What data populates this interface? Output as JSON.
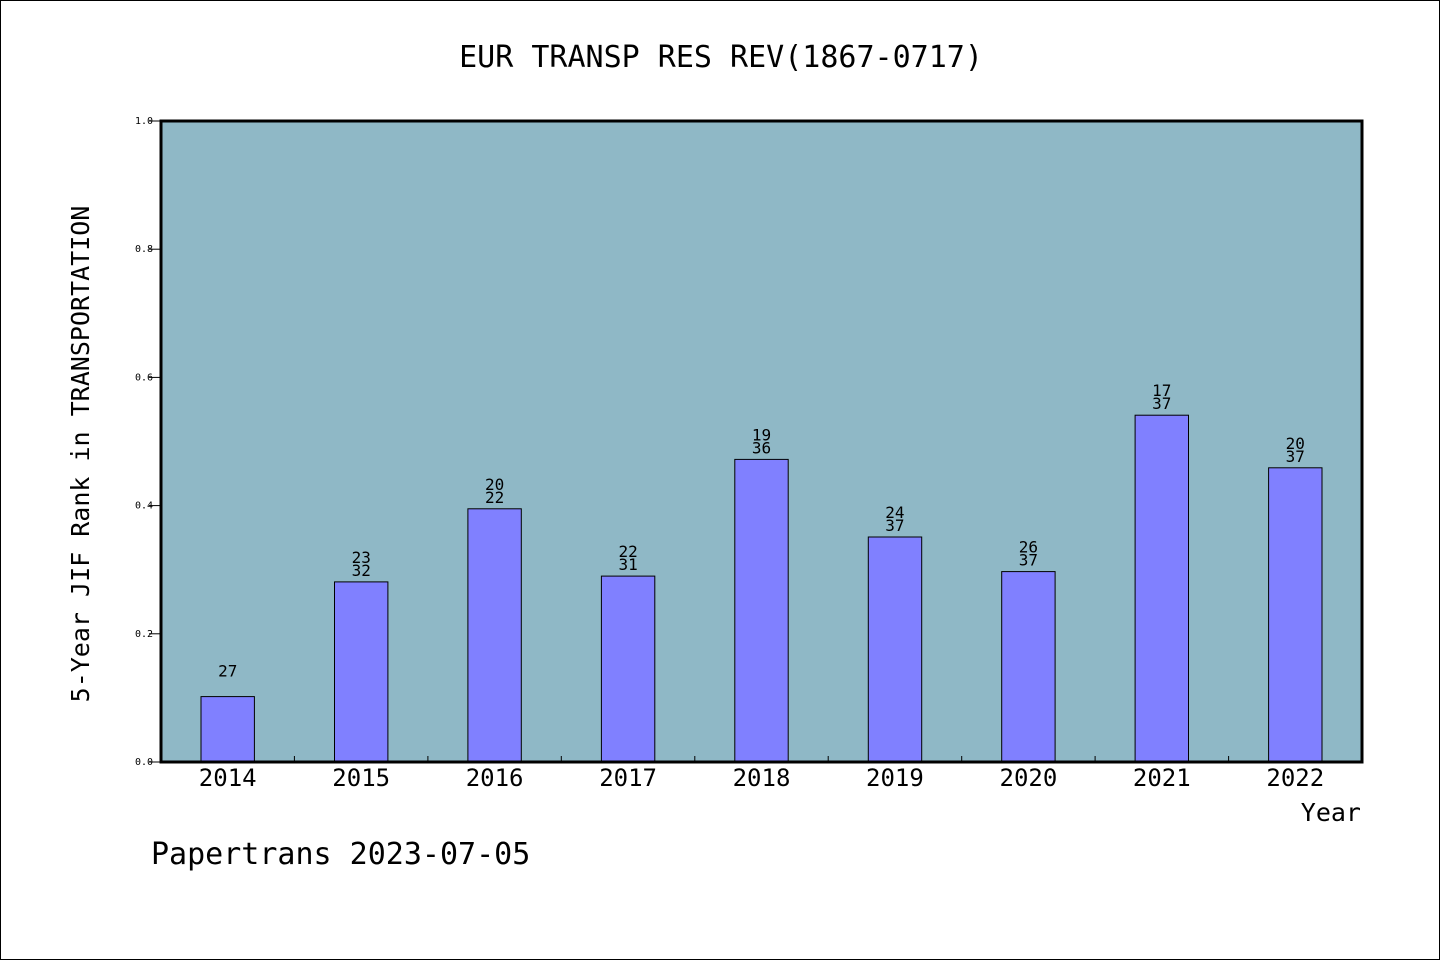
{
  "chart_data": {
    "type": "bar",
    "title": "EUR TRANSP RES REV(1867-0717)",
    "xlabel": "Year",
    "ylabel": "5-Year JIF Rank in TRANSPORTATION",
    "ylim": [
      0,
      1.0
    ],
    "yticks": [
      "0.0",
      "0.2",
      "0.4",
      "0.6",
      "0.8",
      "1.0"
    ],
    "categories": [
      "2014",
      "2015",
      "2016",
      "2017",
      "2018",
      "2019",
      "2020",
      "2021",
      "2022"
    ],
    "values": [
      0.102,
      0.281,
      0.395,
      0.29,
      0.472,
      0.351,
      0.297,
      0.541,
      0.459
    ],
    "bar_labels": [
      [
        "27"
      ],
      [
        "23",
        "32"
      ],
      [
        "20",
        "22"
      ],
      [
        "22",
        "31"
      ],
      [
        "19",
        "36"
      ],
      [
        "24",
        "37"
      ],
      [
        "26",
        "37"
      ],
      [
        "17",
        "37"
      ],
      [
        "20",
        "37"
      ]
    ],
    "grid": false,
    "colors": {
      "plot_background": "#8fb8c6",
      "bar_fill": "#8080ff",
      "bar_stroke": "#000000"
    }
  },
  "footer": "Papertrans 2023-07-05"
}
